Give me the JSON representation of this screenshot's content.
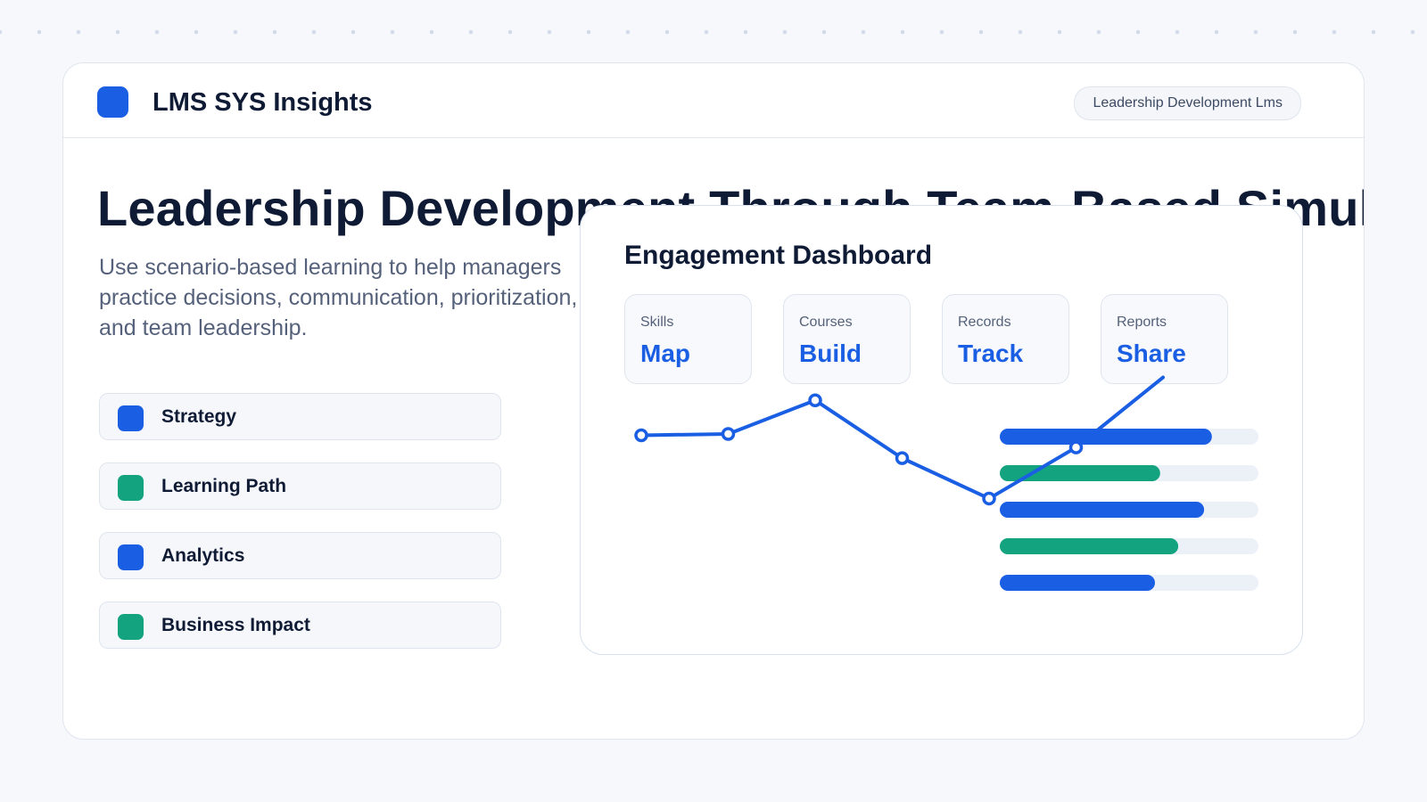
{
  "colors": {
    "primary": "#1a5fe3",
    "accent": "#13a37f",
    "track": "#ecf0f7"
  },
  "brand": {
    "name": "LMS SYS Insights",
    "logo_color": "#1a5fe3",
    "tag": "Leadership Development Lms"
  },
  "hero": {
    "title": "Leadership Development Through Team-Based Simulations",
    "description": "Use scenario-based learning to help managers practice decisions, communication, prioritization, and team leadership."
  },
  "pillars": [
    {
      "label": "Strategy",
      "color": "#1a5fe3"
    },
    {
      "label": "Learning Path",
      "color": "#13a37f"
    },
    {
      "label": "Analytics",
      "color": "#1a5fe3"
    },
    {
      "label": "Business Impact",
      "color": "#13a37f"
    }
  ],
  "dashboard": {
    "title": "Engagement Dashboard",
    "stats": [
      {
        "key": "Skills",
        "value": "Map"
      },
      {
        "key": "Courses",
        "value": "Build"
      },
      {
        "key": "Records",
        "value": "Track"
      },
      {
        "key": "Reports",
        "value": "Share"
      }
    ]
  },
  "chart_data": [
    {
      "type": "line",
      "series": [
        {
          "values": [
            52,
            53,
            78,
            35,
            5,
            43,
            95
          ]
        }
      ],
      "ylim": [
        0,
        100
      ]
    },
    {
      "type": "bar",
      "orientation": "horizontal",
      "values": [
        82,
        62,
        79,
        69,
        60
      ],
      "colors": [
        "#1a5fe3",
        "#13a37f",
        "#1a5fe3",
        "#13a37f",
        "#1a5fe3"
      ],
      "xlim": [
        0,
        100
      ]
    }
  ]
}
